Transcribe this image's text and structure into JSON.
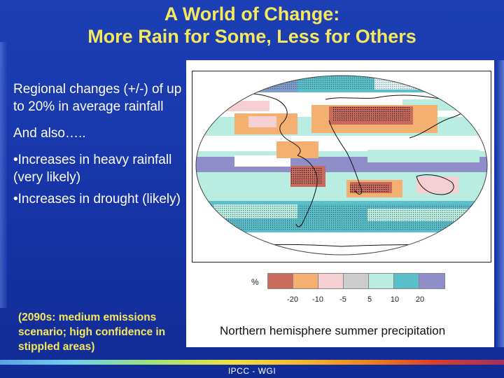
{
  "slide": {
    "title_line1": "A World of Change:",
    "title_line2": "More Rain for Some, Less for Others",
    "body": {
      "p1": "Regional changes (+/-) of up to 20% in average rainfall",
      "p2": "And also…..",
      "b1": "•Increases  in heavy rainfall  (very likely)",
      "b2": "•Increases in drought (likely)"
    },
    "note": "(2090s: medium emissions scenario; high confidence in stippled areas)",
    "figure": {
      "legend_unit": "%",
      "legend_colors": [
        "#c96a5c",
        "#f3b070",
        "#f6cfd2",
        "#cdcdcd",
        "#b9ede1",
        "#5bbfca",
        "#8f8ec9"
      ],
      "legend_ticks": [
        "-20",
        "-10",
        "-5",
        "5",
        "10",
        "20"
      ],
      "caption": "Northern hemisphere summer precipitation"
    },
    "footer": "IPCC - WGI"
  }
}
